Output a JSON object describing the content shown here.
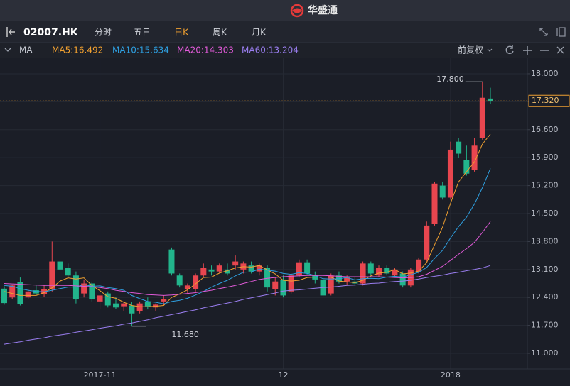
{
  "header": {
    "title": "华盛通"
  },
  "toolbar": {
    "symbol": "02007.HK",
    "tabs": [
      "分时",
      "五日",
      "日K",
      "周K",
      "月K"
    ],
    "active_tab": 2
  },
  "indicator_bar": {
    "name": "MA",
    "adjust": "前复权"
  },
  "chart_data": {
    "type": "candlestick",
    "categories": [
      null,
      null,
      null,
      null,
      null,
      null,
      null,
      null,
      null,
      null,
      null,
      null,
      "2017-11",
      null,
      null,
      null,
      null,
      null,
      null,
      null,
      null,
      null,
      null,
      null,
      null,
      null,
      null,
      null,
      null,
      null,
      null,
      null,
      null,
      null,
      null,
      "12",
      null,
      null,
      null,
      null,
      null,
      null,
      null,
      null,
      null,
      null,
      null,
      null,
      null,
      null,
      null,
      null,
      null,
      null,
      null,
      null,
      "2018",
      null,
      null,
      null,
      null,
      null
    ],
    "ohlc": [
      [
        12.62,
        12.68,
        12.22,
        12.26
      ],
      [
        12.4,
        12.72,
        12.35,
        12.7
      ],
      [
        12.78,
        12.9,
        12.2,
        12.24
      ],
      [
        12.4,
        12.62,
        12.35,
        12.55
      ],
      [
        12.58,
        12.7,
        12.45,
        12.5
      ],
      [
        12.48,
        12.7,
        12.42,
        12.6
      ],
      [
        12.62,
        13.8,
        12.55,
        13.3
      ],
      [
        13.3,
        13.8,
        13.05,
        13.1
      ],
      [
        13.15,
        13.25,
        12.9,
        12.95
      ],
      [
        12.95,
        13.05,
        12.25,
        12.35
      ],
      [
        12.5,
        12.85,
        12.4,
        12.75
      ],
      [
        12.75,
        12.8,
        12.3,
        12.35
      ],
      [
        12.3,
        12.5,
        12.1,
        12.45
      ],
      [
        12.5,
        12.55,
        12.15,
        12.2
      ],
      [
        12.25,
        12.4,
        12.12,
        12.15
      ],
      [
        12.18,
        12.3,
        12.05,
        12.25
      ],
      [
        12.2,
        12.28,
        11.68,
        12.0
      ],
      [
        12.05,
        12.3,
        12.0,
        12.25
      ],
      [
        12.3,
        12.4,
        12.1,
        12.18
      ],
      [
        12.15,
        12.25,
        12.05,
        12.22
      ],
      [
        12.3,
        12.45,
        12.2,
        12.35
      ],
      [
        13.6,
        13.65,
        12.95,
        13.0
      ],
      [
        12.95,
        13.0,
        12.65,
        12.7
      ],
      [
        12.6,
        12.75,
        12.5,
        12.7
      ],
      [
        12.6,
        13.0,
        12.55,
        12.95
      ],
      [
        12.95,
        13.25,
        12.9,
        13.15
      ],
      [
        13.1,
        13.2,
        12.95,
        13.05
      ],
      [
        13.05,
        13.25,
        13.0,
        13.2
      ],
      [
        13.1,
        13.25,
        12.95,
        13.0
      ],
      [
        13.2,
        13.45,
        13.1,
        13.3
      ],
      [
        13.1,
        13.3,
        13.0,
        13.25
      ],
      [
        13.2,
        13.3,
        13.0,
        13.05
      ],
      [
        13.05,
        13.25,
        12.95,
        13.2
      ],
      [
        13.15,
        13.2,
        12.55,
        12.65
      ],
      [
        12.6,
        12.9,
        12.45,
        12.8
      ],
      [
        12.85,
        12.95,
        12.4,
        12.45
      ],
      [
        12.55,
        13.0,
        12.5,
        12.95
      ],
      [
        12.95,
        13.35,
        12.9,
        13.28
      ],
      [
        13.28,
        13.35,
        12.95,
        13.0
      ],
      [
        12.95,
        13.05,
        12.75,
        12.85
      ],
      [
        12.85,
        12.95,
        12.4,
        12.45
      ],
      [
        12.5,
        13.0,
        12.45,
        12.95
      ],
      [
        12.95,
        13.05,
        12.75,
        12.8
      ],
      [
        12.8,
        12.95,
        12.7,
        12.9
      ],
      [
        12.8,
        12.9,
        12.7,
        12.75
      ],
      [
        12.75,
        13.3,
        12.7,
        13.25
      ],
      [
        13.25,
        13.3,
        12.95,
        13.0
      ],
      [
        12.95,
        13.2,
        12.9,
        13.15
      ],
      [
        13.15,
        13.2,
        12.95,
        13.0
      ],
      [
        12.95,
        13.15,
        12.9,
        13.1
      ],
      [
        13.0,
        13.05,
        12.65,
        12.7
      ],
      [
        12.7,
        13.15,
        12.65,
        13.1
      ],
      [
        13.05,
        13.4,
        13.0,
        13.35
      ],
      [
        13.35,
        14.3,
        13.3,
        14.2
      ],
      [
        14.25,
        15.3,
        14.2,
        15.25
      ],
      [
        15.2,
        15.3,
        14.85,
        14.9
      ],
      [
        14.9,
        16.3,
        14.85,
        16.1
      ],
      [
        16.3,
        16.4,
        15.9,
        16.0
      ],
      [
        15.85,
        16.2,
        15.45,
        15.5
      ],
      [
        15.6,
        16.4,
        15.55,
        16.2
      ],
      [
        16.4,
        17.8,
        16.35,
        17.4
      ],
      [
        17.38,
        17.65,
        17.25,
        17.32
      ]
    ],
    "up_color": "#e8464f",
    "down_color": "#22b58c",
    "ylim": [
      10.61,
      18.39
    ],
    "yticks": [
      {
        "value": 11,
        "label": "11.000"
      },
      {
        "value": 11.7,
        "label": "11.700"
      },
      {
        "value": 12.4,
        "label": "12.400"
      },
      {
        "value": 13.1,
        "label": "13.100"
      },
      {
        "value": 13.8,
        "label": "13.800"
      },
      {
        "value": 14.5,
        "label": "14.500"
      },
      {
        "value": 15.2,
        "label": "15.200"
      },
      {
        "value": 15.9,
        "label": "15.900"
      },
      {
        "value": 16.6,
        "label": "16.600"
      },
      {
        "value": 17.3,
        "label": "17.300"
      },
      {
        "value": 18,
        "label": "18.000"
      }
    ],
    "grid": true,
    "moving_averages": [
      {
        "label": "MA5:16.492",
        "color": "#f0a030",
        "values": [
          12.55,
          12.5,
          12.45,
          12.45,
          12.45,
          12.52,
          12.64,
          12.81,
          12.89,
          12.86,
          12.89,
          12.7,
          12.57,
          12.42,
          12.38,
          12.28,
          12.2,
          12.17,
          12.17,
          12.18,
          12.2,
          12.4,
          12.49,
          12.59,
          12.74,
          12.9,
          12.91,
          13.01,
          13.07,
          13.14,
          13.17,
          13.16,
          13.2,
          13.09,
          12.99,
          12.83,
          12.81,
          12.83,
          12.9,
          12.91,
          12.91,
          12.91,
          12.81,
          12.79,
          12.77,
          12.83,
          12.94,
          13.01,
          13.03,
          13.1,
          12.99,
          13.01,
          13.06,
          13.27,
          13.72,
          14.16,
          14.76,
          15.29,
          15.55,
          15.79,
          16.24,
          16.49
        ]
      },
      {
        "label": "MA10:15.634",
        "color": "#2e9fe0",
        "values": [
          12.7,
          12.68,
          12.62,
          12.58,
          12.55,
          12.54,
          12.58,
          12.62,
          12.66,
          12.66,
          12.72,
          12.68,
          12.69,
          12.65,
          12.62,
          12.58,
          12.45,
          12.37,
          12.3,
          12.28,
          12.24,
          12.3,
          12.33,
          12.38,
          12.46,
          12.55,
          12.66,
          12.75,
          12.83,
          12.94,
          13.03,
          13.04,
          13.11,
          13.08,
          13.06,
          13.0,
          12.98,
          13.02,
          13.0,
          12.95,
          12.87,
          12.86,
          12.87,
          12.9,
          12.84,
          12.87,
          12.88,
          12.87,
          12.91,
          12.93,
          12.91,
          12.97,
          13.03,
          13.15,
          13.38,
          13.58,
          13.89,
          14.17,
          14.41,
          14.74,
          15.15,
          15.63
        ]
      },
      {
        "label": "MA20:14.303",
        "color": "#e05ad8",
        "values": [
          12.75,
          12.74,
          12.73,
          12.72,
          12.71,
          12.7,
          12.7,
          12.7,
          12.7,
          12.69,
          12.68,
          12.67,
          12.65,
          12.62,
          12.58,
          12.55,
          12.52,
          12.5,
          12.47,
          12.46,
          12.45,
          12.46,
          12.48,
          12.5,
          12.52,
          12.55,
          12.58,
          12.62,
          12.66,
          12.7,
          12.75,
          12.8,
          12.85,
          12.88,
          12.9,
          12.92,
          12.93,
          12.94,
          12.95,
          12.95,
          12.95,
          12.94,
          12.93,
          12.92,
          12.92,
          12.92,
          12.92,
          12.92,
          12.91,
          12.9,
          12.89,
          12.9,
          12.92,
          12.98,
          13.08,
          13.18,
          13.33,
          13.48,
          13.62,
          13.78,
          14.03,
          14.3
        ]
      },
      {
        "label": "MA60:13.204",
        "color": "#9a7ef0",
        "values": [
          11.23,
          11.26,
          11.29,
          11.33,
          11.36,
          11.39,
          11.43,
          11.46,
          11.49,
          11.53,
          11.56,
          11.59,
          11.63,
          11.66,
          11.69,
          11.73,
          11.76,
          11.8,
          11.84,
          11.89,
          11.93,
          11.97,
          12.01,
          12.05,
          12.09,
          12.14,
          12.18,
          12.22,
          12.26,
          12.3,
          12.35,
          12.39,
          12.43,
          12.47,
          12.51,
          12.56,
          12.58,
          12.59,
          12.61,
          12.63,
          12.65,
          12.66,
          12.68,
          12.7,
          12.71,
          12.73,
          12.75,
          12.76,
          12.78,
          12.8,
          12.81,
          12.83,
          12.86,
          12.9,
          12.93,
          12.96,
          13.0,
          13.03,
          13.07,
          13.1,
          13.14,
          13.2
        ]
      }
    ],
    "max_label": {
      "value": 17.8,
      "label": "17.800"
    },
    "min_label": {
      "value": 11.68,
      "label": "11.680"
    },
    "last_price": {
      "value": 17.32,
      "label": "17.320"
    }
  }
}
